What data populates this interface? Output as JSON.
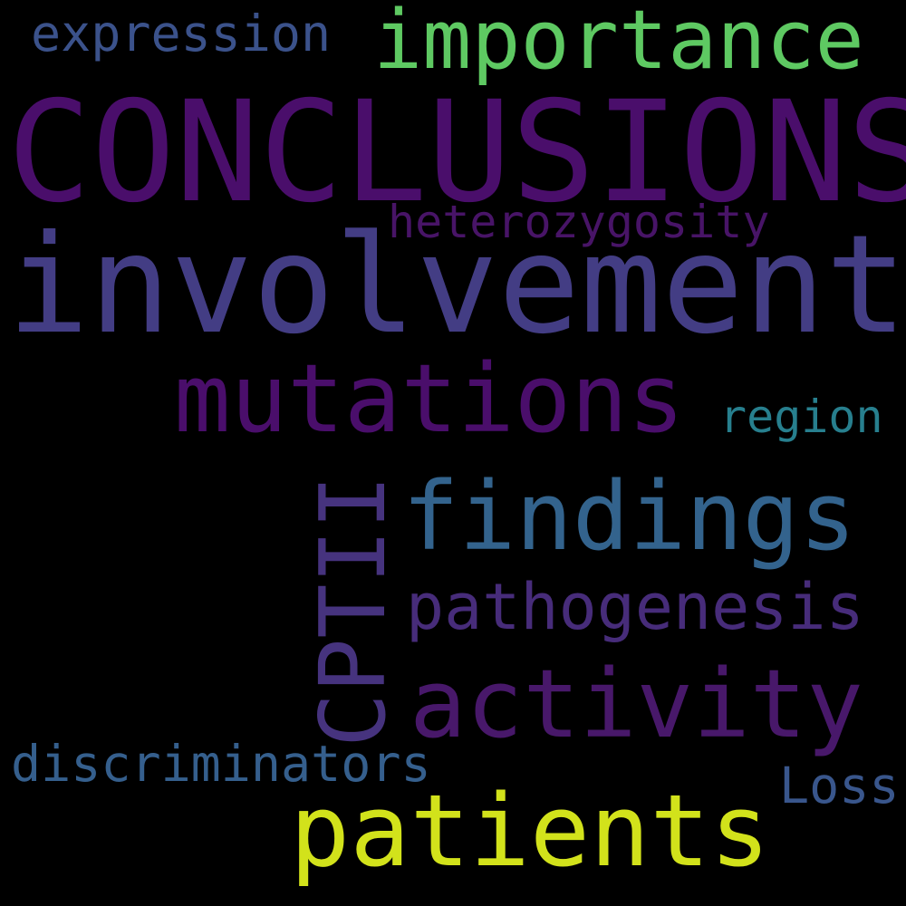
{
  "words": [
    {
      "id": "conclusions",
      "text": "CONCLUSIONS",
      "color": "#4a0e6b"
    },
    {
      "id": "involvement",
      "text": "involvement",
      "color": "#433d84"
    },
    {
      "id": "patients",
      "text": "patients",
      "color": "#d2e21b"
    },
    {
      "id": "mutations",
      "text": "mutations",
      "color": "#4a0e6b"
    },
    {
      "id": "findings",
      "text": "findings",
      "color": "#33638d"
    },
    {
      "id": "activity",
      "text": "activity",
      "color": "#48186a"
    },
    {
      "id": "importance",
      "text": "importance",
      "color": "#5ec962"
    },
    {
      "id": "cptii",
      "text": "CPTII",
      "color": "#46337e"
    },
    {
      "id": "pathogenesis",
      "text": "pathogenesis",
      "color": "#472c7a"
    },
    {
      "id": "heterozygosity",
      "text": "heterozygosity",
      "color": "#481467"
    },
    {
      "id": "region",
      "text": "region",
      "color": "#277f8e"
    },
    {
      "id": "expression",
      "text": "expression",
      "color": "#3b528b"
    },
    {
      "id": "discriminators",
      "text": "discriminators",
      "color": "#355f8d"
    },
    {
      "id": "loss",
      "text": "Loss",
      "color": "#39568c"
    }
  ]
}
